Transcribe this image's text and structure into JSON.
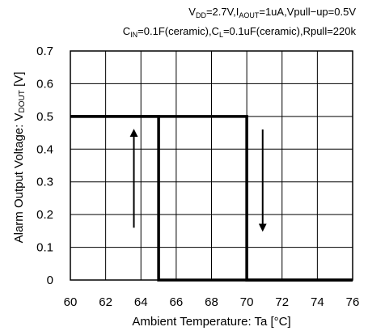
{
  "chart_data": {
    "type": "line",
    "conditions": {
      "line1": {
        "a": "V",
        "a_sub": "DD",
        "b": "=2.7V,I",
        "b_sub": "AOUT",
        "c": "=1uA,Vpull−up=0.5V"
      },
      "line2": {
        "a": "C",
        "a_sub": "IN",
        "b": "=0.1F(ceramic),C",
        "b_sub": "L",
        "c": "=0.1uF(ceramic),Rpull=220k"
      }
    },
    "xlabel": "Ambient Temperature: Ta [°C]",
    "ylabel_prefix": "Alarm Output Voltage:  V",
    "ylabel_sub": "DOUT",
    "ylabel_suffix": " [V]",
    "xlim": [
      60,
      76
    ],
    "ylim": [
      0,
      0.7
    ],
    "xticks": [
      "60",
      "62",
      "64",
      "66",
      "68",
      "70",
      "72",
      "74",
      "76"
    ],
    "yticks": [
      "0",
      "0.1",
      "0.2",
      "0.3",
      "0.4",
      "0.5",
      "0.6",
      "0.7"
    ],
    "grid": true,
    "series": [
      {
        "x": [
          60,
          65,
          65,
          76
        ],
        "y": [
          0.5,
          0.5,
          0,
          0
        ]
      },
      {
        "x": [
          60,
          70,
          70,
          76
        ],
        "y": [
          0.5,
          0.5,
          0,
          0
        ]
      }
    ],
    "arrows": [
      {
        "x": 63.6,
        "from": 0.16,
        "to": 0.45,
        "direction": "up"
      },
      {
        "x": 70.9,
        "from": 0.46,
        "to": 0.16,
        "direction": "down"
      }
    ]
  }
}
